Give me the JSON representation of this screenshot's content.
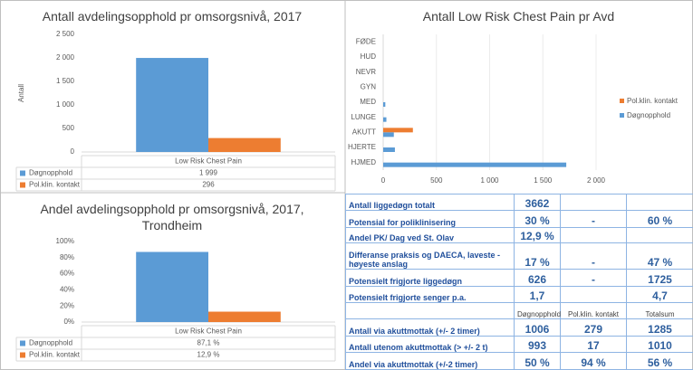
{
  "chart_data": [
    {
      "type": "bar",
      "title": "Antall avdelingsopphold pr omsorgsnivå, 2017",
      "y_label": "Antall",
      "categories": [
        "Low Risk Chest Pain"
      ],
      "series": [
        {
          "name": "Døgnopphold",
          "color": "#5b9bd5",
          "values": [
            1999
          ],
          "value_labels": [
            "1 999"
          ]
        },
        {
          "name": "Pol.klin. kontakt",
          "color": "#ed7d31",
          "values": [
            296
          ],
          "value_labels": [
            "296"
          ]
        }
      ],
      "ylim": [
        0,
        2500
      ],
      "yticks": [
        0,
        500,
        {
          "value": 1000,
          "label": "1 000"
        },
        {
          "value": 1500,
          "label": "1 500"
        },
        {
          "value": 2000,
          "label": "2 000"
        },
        {
          "value": 2500,
          "label": "2 500"
        }
      ],
      "data_table": true
    },
    {
      "type": "barh",
      "title": "Antall Low Risk Chest Pain pr Avd",
      "categories": [
        "FØDE",
        "HUD",
        "NEVR",
        "GYN",
        "MED",
        "LUNGE",
        "AKUTT",
        "HJERTE",
        "HJMED"
      ],
      "series": [
        {
          "name": "Pol.klin. kontakt",
          "color": "#ed7d31",
          "values": [
            0,
            0,
            0,
            0,
            0,
            0,
            279,
            0,
            0
          ]
        },
        {
          "name": "Døgnopphold",
          "color": "#5b9bd5",
          "values": [
            0,
            0,
            0,
            0,
            20,
            30,
            100,
            110,
            1720
          ]
        }
      ],
      "xlim": [
        0,
        2000
      ],
      "xticks": [
        0,
        500,
        {
          "value": 1000,
          "label": "1 000"
        },
        {
          "value": 1500,
          "label": "1 500"
        },
        {
          "value": 2000,
          "label": "2 000"
        }
      ],
      "grid": true,
      "legend": "right"
    },
    {
      "type": "bar",
      "title": "Andel avdelingsopphold pr omsorgsnivå, 2017, Trondheim",
      "categories": [
        "Low Risk Chest Pain"
      ],
      "series": [
        {
          "name": "Døgnopphold",
          "color": "#5b9bd5",
          "values": [
            87.1
          ],
          "value_labels": [
            "87,1 %"
          ]
        },
        {
          "name": "Pol.klin. kontakt",
          "color": "#ed7d31",
          "values": [
            12.9
          ],
          "value_labels": [
            "12,9 %"
          ]
        }
      ],
      "ylim": [
        0,
        100
      ],
      "yticks": [
        {
          "value": 0,
          "label": "0%"
        },
        {
          "value": 20,
          "label": "20%"
        },
        {
          "value": 40,
          "label": "40%"
        },
        {
          "value": 60,
          "label": "60%"
        },
        {
          "value": 80,
          "label": "80%"
        },
        {
          "value": 100,
          "label": "100%"
        }
      ],
      "data_table": true
    }
  ],
  "table": {
    "rows": [
      [
        "Antall liggedøgn totalt",
        "3662",
        null,
        null
      ],
      [
        "Potensial for poliklinisering",
        "30 %",
        "-",
        "60 %"
      ],
      [
        "Andel PK/ Dag ved St. Olav",
        "12,9 %",
        null,
        null
      ],
      [
        "Differanse praksis og DAECA, laveste - høyeste anslag",
        "17 %",
        "-",
        "47 %"
      ],
      [
        "Potensielt frigjorte liggedøgn",
        "626",
        "-",
        "1725"
      ],
      [
        "Potensielt frigjorte senger p.a.",
        "1,7",
        null,
        "4,7"
      ],
      [
        null,
        "Døgnopphold",
        "Pol.klin. kontakt",
        "Totalsum"
      ],
      [
        "Antall via akuttmottak (+/- 2 timer)",
        "1006",
        "279",
        "1285"
      ],
      [
        "Antall utenom akuttmottak (> +/- 2 t)",
        "993",
        "17",
        "1010"
      ],
      [
        "Andel via akuttmottak (+/-2 timer)",
        "50 %",
        "94 %",
        "56 %"
      ]
    ]
  }
}
